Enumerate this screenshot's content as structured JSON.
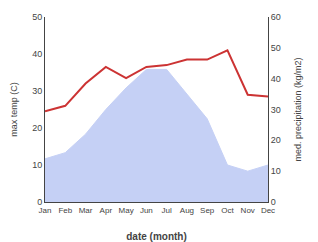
{
  "chart_data": {
    "type": "line",
    "categories": [
      "Jan",
      "Feb",
      "Mar",
      "Apr",
      "May",
      "Jun",
      "Jul",
      "Aug",
      "Sep",
      "Oct",
      "Nov",
      "Dec"
    ],
    "series": [
      {
        "type": "area",
        "color": "#c5d0f5",
        "axis": "y2",
        "values": [
          14,
          16,
          22,
          30,
          37,
          43,
          43,
          35,
          27,
          12,
          10,
          12
        ]
      },
      {
        "type": "line",
        "color": "#cc3333",
        "values": [
          24.5,
          26.0,
          32.0,
          36.5,
          33.5,
          36.5,
          37.0,
          38.5,
          38.5,
          41.0,
          29.0,
          28.5
        ]
      }
    ],
    "xlabel": "date (month)",
    "ylabel": "max temp (C)",
    "y2label": "med. precipitation (kg/m2)",
    "ylim": [
      0,
      50
    ],
    "yticks": [
      0,
      10,
      20,
      30,
      40,
      50
    ],
    "y2lim": [
      0,
      60
    ],
    "y2ticks": [
      0,
      10,
      20,
      30,
      40,
      50,
      60
    ],
    "grid": false
  }
}
